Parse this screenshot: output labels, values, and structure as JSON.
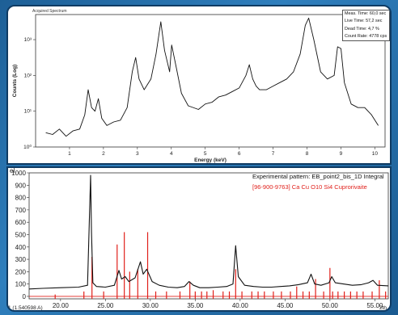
{
  "spectrum_panel": {
    "tab_label": "Acquired Spectrum",
    "y_axis_label": "Counts (Log)",
    "x_axis_label": "Energy (keV)",
    "y_ticks": [
      "10³",
      "10²",
      "10¹",
      "10⁰"
    ],
    "x_ticks": [
      "1",
      "2",
      "3",
      "4",
      "5",
      "6",
      "7",
      "8",
      "9",
      "10"
    ],
    "info": {
      "meas_time": "Meas. Time: 60,0 sec",
      "live_time": "Live Time: 57,2 sec",
      "dead_time": "Dead Time: 4,7 %",
      "count_rate": "Count Rate: 4778 cps"
    }
  },
  "xrd_panel": {
    "y_axis_prefix": "el.",
    "y_ticks": [
      "1000",
      "900",
      "800",
      "700",
      "600",
      "500",
      "400",
      "300",
      "200",
      "100",
      "0"
    ],
    "x_ticks": [
      "20.00",
      "25.00",
      "30.00",
      "35.00",
      "40.00",
      "45.00",
      "50.00",
      "55.00"
    ],
    "bottom_left_label": "1 (1.540598 A)",
    "bottom_right_label": "2th",
    "legend": {
      "experimental": "Experimental pattern: EB_point2_bis_1D Integral",
      "reference": "[96-900-9763] Ca Cu O10 Si4  Cuprorivaite"
    },
    "colors": {
      "experimental": "#111111",
      "reference": "#e0201b"
    }
  },
  "chart_data": [
    {
      "type": "line",
      "xlabel": "Energy (keV)",
      "ylabel": "Counts (Log)",
      "xlim": [
        0,
        10.3
      ],
      "ylim_log10": [
        0,
        3.7
      ],
      "y_scale": "log",
      "series": [
        {
          "x": [
            0.3,
            0.5,
            0.7,
            0.9,
            1.1,
            1.3,
            1.45,
            1.55,
            1.65,
            1.75,
            1.85,
            1.95,
            2.1,
            2.3,
            2.5,
            2.7,
            2.85,
            2.95,
            3.05,
            3.2,
            3.4,
            3.55,
            3.69,
            3.8,
            3.95,
            4.01,
            4.15,
            4.3,
            4.5,
            4.8,
            5.0,
            5.2,
            5.4,
            5.6,
            5.8,
            6.0,
            6.2,
            6.3,
            6.4,
            6.5,
            6.6,
            6.8,
            7.0,
            7.2,
            7.4,
            7.6,
            7.8,
            7.95,
            8.05,
            8.2,
            8.4,
            8.6,
            8.8,
            8.9,
            9.0,
            9.1,
            9.3,
            9.5,
            9.7,
            9.9,
            10.1
          ],
          "y": [
            0.4,
            0.35,
            0.5,
            0.3,
            0.45,
            0.5,
            0.9,
            1.6,
            1.1,
            1.0,
            1.35,
            0.8,
            0.6,
            0.7,
            0.75,
            1.1,
            2.1,
            2.5,
            1.9,
            1.6,
            1.9,
            2.6,
            3.5,
            2.7,
            2.1,
            2.85,
            2.2,
            1.5,
            1.15,
            1.05,
            1.2,
            1.25,
            1.4,
            1.45,
            1.55,
            1.65,
            2.0,
            2.3,
            1.9,
            1.7,
            1.6,
            1.6,
            1.7,
            1.8,
            1.9,
            2.1,
            2.6,
            3.4,
            3.6,
            3.0,
            2.1,
            1.9,
            2.0,
            2.8,
            2.75,
            1.8,
            1.2,
            1.1,
            1.1,
            0.9,
            0.6
          ]
        }
      ]
    },
    {
      "type": "line",
      "xlabel": "2th",
      "ylabel": "",
      "xlim": [
        16.5,
        56.5
      ],
      "ylim": [
        -20,
        1000
      ],
      "series": [
        {
          "name": "Experimental pattern: EB_point2_bis_1D Integral",
          "x": [
            16.5,
            18,
            20,
            22,
            23.0,
            23.35,
            23.45,
            23.6,
            24,
            25,
            26,
            26.5,
            26.8,
            27.2,
            27.6,
            28.3,
            28.9,
            29.2,
            29.6,
            30.2,
            31,
            32,
            33,
            33.8,
            34.3,
            34.8,
            35.5,
            36.5,
            37.5,
            38.5,
            39.2,
            39.5,
            39.8,
            40.5,
            41.5,
            42.5,
            43.5,
            44.5,
            45.5,
            46.5,
            47.5,
            47.9,
            48.3,
            49,
            49.9,
            50.2,
            50.6,
            51.5,
            52.5,
            53.5,
            54.3,
            54.8,
            55.3,
            56.5
          ],
          "y": [
            60,
            65,
            70,
            75,
            90,
            980,
            520,
            110,
            80,
            75,
            90,
            210,
            140,
            160,
            120,
            150,
            280,
            180,
            220,
            120,
            90,
            75,
            70,
            80,
            120,
            90,
            70,
            70,
            75,
            80,
            100,
            410,
            160,
            90,
            80,
            75,
            75,
            80,
            85,
            95,
            110,
            180,
            100,
            90,
            110,
            160,
            110,
            100,
            90,
            95,
            110,
            130,
            90,
            85
          ]
        },
        {
          "name": "[96-900-9763] Ca Cu O10 Si4  Cuprorivaite",
          "type": "sticks",
          "x": [
            19.4,
            22.6,
            23.5,
            24.8,
            26.3,
            27.1,
            27.7,
            28.6,
            29.7,
            30.6,
            31.8,
            33.3,
            34.4,
            35.0,
            35.7,
            36.3,
            37.0,
            38.1,
            38.8,
            39.5,
            40.2,
            41.3,
            42.0,
            42.7,
            43.7,
            44.6,
            45.6,
            46.3,
            47.0,
            47.7,
            48.4,
            49.3,
            50.0,
            50.3,
            50.9,
            51.6,
            52.3,
            53.0,
            53.7,
            54.7,
            55.5,
            56.2
          ],
          "y": [
            15,
            40,
            320,
            40,
            420,
            520,
            200,
            220,
            520,
            40,
            40,
            40,
            120,
            40,
            40,
            40,
            50,
            40,
            40,
            220,
            40,
            40,
            40,
            40,
            40,
            40,
            40,
            80,
            40,
            40,
            140,
            40,
            230,
            40,
            40,
            40,
            40,
            40,
            40,
            40,
            130,
            40
          ]
        }
      ]
    }
  ]
}
